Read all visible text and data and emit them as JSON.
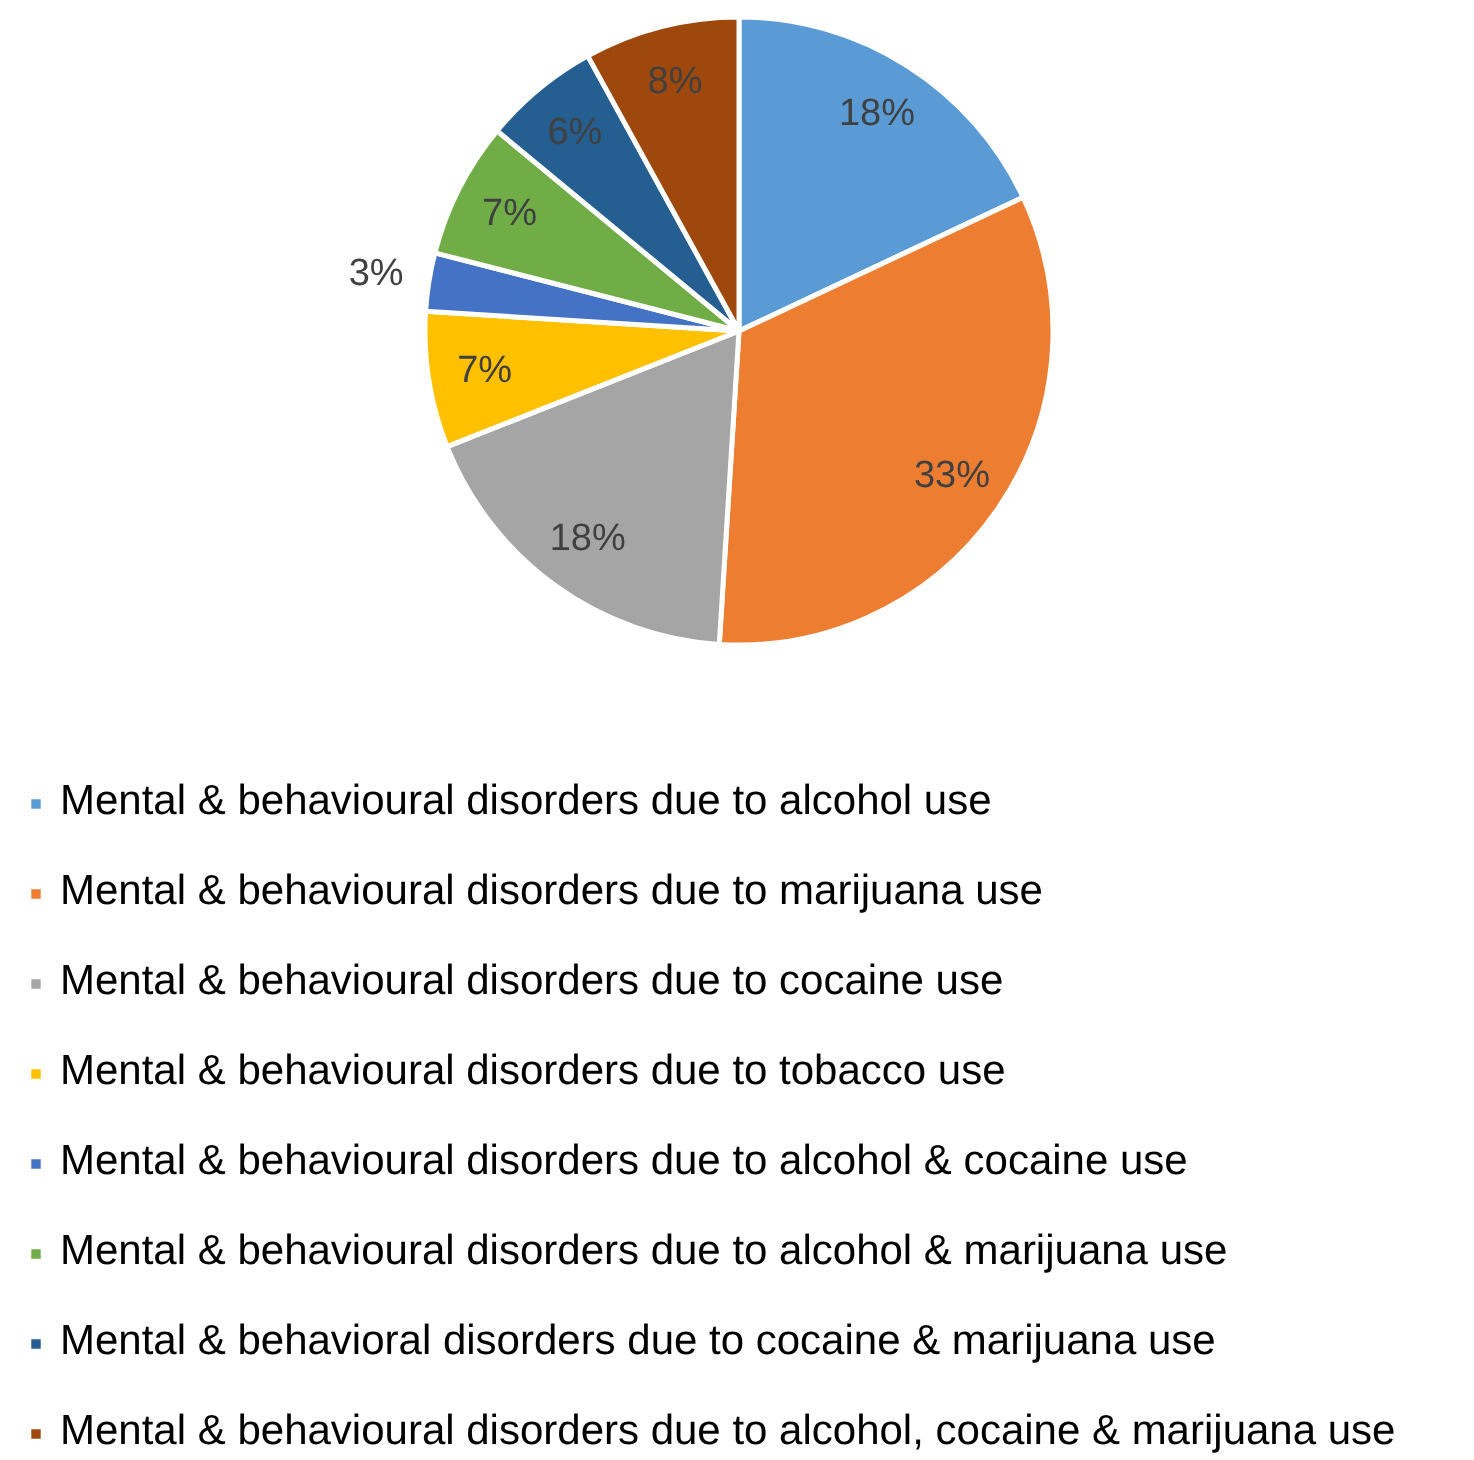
{
  "chart_data": {
    "type": "pie",
    "categories": [
      "Mental & behavioural disorders due to alcohol use",
      "Mental & behavioural disorders due to marijuana use",
      "Mental & behavioural disorders due to cocaine use",
      "Mental & behavioural disorders due to tobacco use",
      "Mental & behavioural disorders due to alcohol & cocaine use",
      "Mental & behavioural disorders due to alcohol & marijuana use",
      "Mental & behavioral disorders due to cocaine & marijuana use",
      "Mental & behavioural disorders due to alcohol, cocaine & marijuana use"
    ],
    "values": [
      18,
      33,
      18,
      7,
      3,
      7,
      6,
      8
    ],
    "colors": [
      "#5b9bd5",
      "#ed7d31",
      "#a5a5a5",
      "#ffc000",
      "#4472c4",
      "#70ad47",
      "#255e91",
      "#9e480e"
    ],
    "value_labels": [
      "18%",
      "33%",
      "18%",
      "7%",
      "3%",
      "7%",
      "6%",
      "8%"
    ],
    "legend": "bottom"
  }
}
